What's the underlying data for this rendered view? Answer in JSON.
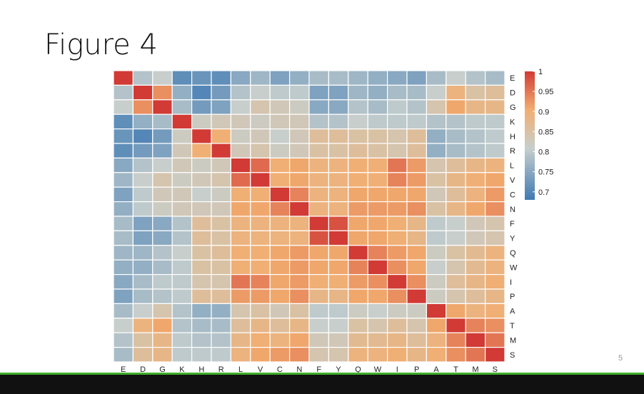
{
  "slide": {
    "title": "Figure 4",
    "page_number": "5"
  },
  "colors": {
    "low": "#3f7ab3",
    "mid": "#c6cfcd",
    "mid_high": "#f2ae70",
    "high": "#d13a35",
    "footer_accent": "#3fae2a",
    "footer_bar": "#111111"
  },
  "chart_data": {
    "type": "heatmap",
    "labels": [
      "E",
      "D",
      "G",
      "K",
      "H",
      "R",
      "L",
      "V",
      "C",
      "N",
      "F",
      "Y",
      "Q",
      "W",
      "I",
      "P",
      "A",
      "T",
      "M",
      "S"
    ],
    "x_labels": [
      "E",
      "D",
      "G",
      "K",
      "H",
      "R",
      "L",
      "V",
      "C",
      "N",
      "F",
      "Y",
      "Q",
      "W",
      "I",
      "P",
      "A",
      "T",
      "M",
      "S"
    ],
    "y_labels": [
      "E",
      "D",
      "G",
      "K",
      "H",
      "R",
      "L",
      "V",
      "C",
      "N",
      "F",
      "Y",
      "Q",
      "W",
      "I",
      "P",
      "A",
      "T",
      "M",
      "S"
    ],
    "legend": {
      "position": "right",
      "min": 0.68,
      "max": 1.0,
      "ticks": [
        "1",
        "0.95",
        "0.9",
        "0.85",
        "0.8",
        "0.75",
        "0.7"
      ],
      "tick_values": [
        1.0,
        0.95,
        0.9,
        0.85,
        0.8,
        0.75,
        0.7
      ]
    },
    "values": [
      [
        1.0,
        0.79,
        0.81,
        0.71,
        0.72,
        0.71,
        0.75,
        0.77,
        0.74,
        0.76,
        0.78,
        0.78,
        0.77,
        0.76,
        0.75,
        0.74,
        0.78,
        0.81,
        0.79,
        0.78
      ],
      [
        0.79,
        1.0,
        0.93,
        0.76,
        0.7,
        0.73,
        0.79,
        0.81,
        0.8,
        0.8,
        0.74,
        0.74,
        0.77,
        0.76,
        0.78,
        0.78,
        0.81,
        0.89,
        0.85,
        0.86
      ],
      [
        0.81,
        0.93,
        1.0,
        0.78,
        0.73,
        0.74,
        0.81,
        0.84,
        0.83,
        0.82,
        0.75,
        0.75,
        0.79,
        0.78,
        0.8,
        0.79,
        0.84,
        0.91,
        0.88,
        0.88
      ],
      [
        0.71,
        0.76,
        0.78,
        1.0,
        0.82,
        0.83,
        0.83,
        0.82,
        0.83,
        0.83,
        0.79,
        0.79,
        0.81,
        0.8,
        0.8,
        0.8,
        0.79,
        0.79,
        0.8,
        0.8
      ],
      [
        0.72,
        0.7,
        0.73,
        0.82,
        1.0,
        0.9,
        0.82,
        0.83,
        0.81,
        0.83,
        0.86,
        0.86,
        0.85,
        0.85,
        0.84,
        0.86,
        0.76,
        0.78,
        0.79,
        0.8
      ],
      [
        0.71,
        0.73,
        0.74,
        0.83,
        0.9,
        1.0,
        0.83,
        0.84,
        0.82,
        0.83,
        0.85,
        0.85,
        0.86,
        0.85,
        0.84,
        0.86,
        0.76,
        0.78,
        0.79,
        0.8
      ],
      [
        0.75,
        0.79,
        0.81,
        0.83,
        0.82,
        0.83,
        1.0,
        0.96,
        0.9,
        0.91,
        0.89,
        0.89,
        0.9,
        0.9,
        0.95,
        0.92,
        0.84,
        0.86,
        0.88,
        0.89
      ],
      [
        0.77,
        0.81,
        0.84,
        0.82,
        0.83,
        0.84,
        0.96,
        1.0,
        0.9,
        0.91,
        0.89,
        0.89,
        0.9,
        0.9,
        0.94,
        0.92,
        0.85,
        0.88,
        0.9,
        0.91
      ],
      [
        0.74,
        0.8,
        0.83,
        0.83,
        0.81,
        0.82,
        0.9,
        0.9,
        1.0,
        0.94,
        0.89,
        0.89,
        0.91,
        0.91,
        0.91,
        0.91,
        0.83,
        0.86,
        0.89,
        0.92
      ],
      [
        0.76,
        0.8,
        0.82,
        0.83,
        0.83,
        0.83,
        0.91,
        0.91,
        0.94,
        1.0,
        0.89,
        0.89,
        0.92,
        0.92,
        0.92,
        0.93,
        0.85,
        0.88,
        0.91,
        0.93
      ],
      [
        0.78,
        0.74,
        0.75,
        0.79,
        0.86,
        0.85,
        0.89,
        0.89,
        0.89,
        0.89,
        1.0,
        0.98,
        0.91,
        0.91,
        0.9,
        0.88,
        0.8,
        0.81,
        0.83,
        0.84
      ],
      [
        0.78,
        0.74,
        0.75,
        0.79,
        0.86,
        0.85,
        0.89,
        0.89,
        0.89,
        0.89,
        0.98,
        1.0,
        0.91,
        0.91,
        0.9,
        0.88,
        0.8,
        0.81,
        0.83,
        0.84
      ],
      [
        0.77,
        0.77,
        0.79,
        0.81,
        0.85,
        0.86,
        0.9,
        0.9,
        0.91,
        0.92,
        0.91,
        0.91,
        1.0,
        0.94,
        0.92,
        0.91,
        0.82,
        0.85,
        0.87,
        0.89
      ],
      [
        0.76,
        0.76,
        0.78,
        0.8,
        0.85,
        0.85,
        0.9,
        0.9,
        0.91,
        0.92,
        0.91,
        0.91,
        0.94,
        1.0,
        0.93,
        0.91,
        0.81,
        0.84,
        0.87,
        0.89
      ],
      [
        0.75,
        0.78,
        0.8,
        0.8,
        0.84,
        0.84,
        0.95,
        0.94,
        0.91,
        0.92,
        0.9,
        0.9,
        0.92,
        0.93,
        1.0,
        0.93,
        0.82,
        0.86,
        0.88,
        0.9
      ],
      [
        0.74,
        0.78,
        0.79,
        0.8,
        0.86,
        0.86,
        0.92,
        0.92,
        0.91,
        0.93,
        0.88,
        0.88,
        0.91,
        0.91,
        0.93,
        1.0,
        0.82,
        0.84,
        0.86,
        0.88
      ],
      [
        0.78,
        0.81,
        0.84,
        0.79,
        0.76,
        0.76,
        0.84,
        0.85,
        0.83,
        0.85,
        0.8,
        0.8,
        0.82,
        0.81,
        0.82,
        0.82,
        1.0,
        0.91,
        0.89,
        0.9
      ],
      [
        0.81,
        0.89,
        0.91,
        0.79,
        0.78,
        0.78,
        0.86,
        0.88,
        0.86,
        0.88,
        0.81,
        0.81,
        0.85,
        0.84,
        0.86,
        0.84,
        0.91,
        1.0,
        0.94,
        0.93
      ],
      [
        0.79,
        0.85,
        0.88,
        0.8,
        0.79,
        0.79,
        0.88,
        0.9,
        0.89,
        0.91,
        0.83,
        0.83,
        0.87,
        0.87,
        0.88,
        0.86,
        0.89,
        0.94,
        1.0,
        0.95
      ],
      [
        0.78,
        0.86,
        0.88,
        0.8,
        0.8,
        0.8,
        0.89,
        0.91,
        0.92,
        0.93,
        0.84,
        0.84,
        0.89,
        0.89,
        0.9,
        0.88,
        0.9,
        0.93,
        0.95,
        1.0
      ]
    ]
  }
}
